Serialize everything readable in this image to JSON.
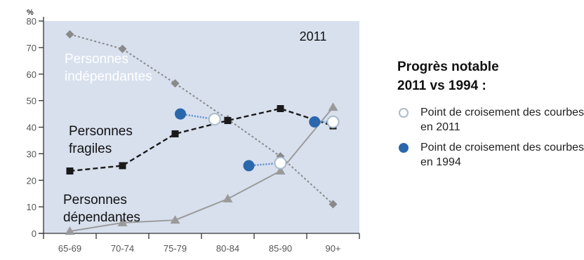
{
  "chart_data": {
    "type": "line",
    "unit": "%",
    "year": "2011",
    "categories": [
      "65-69",
      "70-74",
      "75-79",
      "80-84",
      "85-90",
      "90+"
    ],
    "ylim": [
      0,
      80
    ],
    "yticks": [
      0,
      10,
      20,
      30,
      40,
      50,
      60,
      70,
      80
    ],
    "series": [
      {
        "name": "independants",
        "label_lines": [
          "Personnes",
          "indépendantes"
        ],
        "values": [
          75,
          69.5,
          56.5,
          43,
          29,
          11
        ],
        "color": "#8a8a8a",
        "marker": "diamond"
      },
      {
        "name": "fragiles",
        "label_lines": [
          "Personnes",
          "fragiles"
        ],
        "values": [
          23.5,
          25.5,
          37.5,
          42.5,
          47,
          40.5
        ],
        "color": "#1a1a1a",
        "marker": "square"
      },
      {
        "name": "dependants",
        "label_lines": [
          "Personnes",
          "dépendantes"
        ],
        "values": [
          0.8,
          4,
          5,
          13,
          23.5,
          47.5
        ],
        "color": "#9a9a9a",
        "marker": "triangle"
      }
    ],
    "crossings": [
      {
        "from": {
          "x": 2.6,
          "y": 45
        },
        "to": {
          "x": 3.25,
          "y": 43
        }
      },
      {
        "from": {
          "x": 3.9,
          "y": 25.5
        },
        "to": {
          "x": 4.5,
          "y": 26.5
        }
      },
      {
        "from": {
          "x": 5.15,
          "y": 42
        },
        "to": {
          "x": 5.5,
          "y": 42
        }
      }
    ],
    "colors": {
      "plot_bg": "#d8e0ee",
      "crossing_2011_stroke": "#a9bccd",
      "crossing_1994_fill": "#2b67ad",
      "link": "#5b8fd0"
    }
  },
  "side": {
    "title_lines": [
      "Progrès notable",
      "2011 vs 1994 :"
    ],
    "legend": [
      {
        "kind": "open",
        "text": "Point de croisement des courbes en 2011"
      },
      {
        "kind": "filled",
        "text": "Point de croisement des courbes en 1994"
      }
    ]
  }
}
